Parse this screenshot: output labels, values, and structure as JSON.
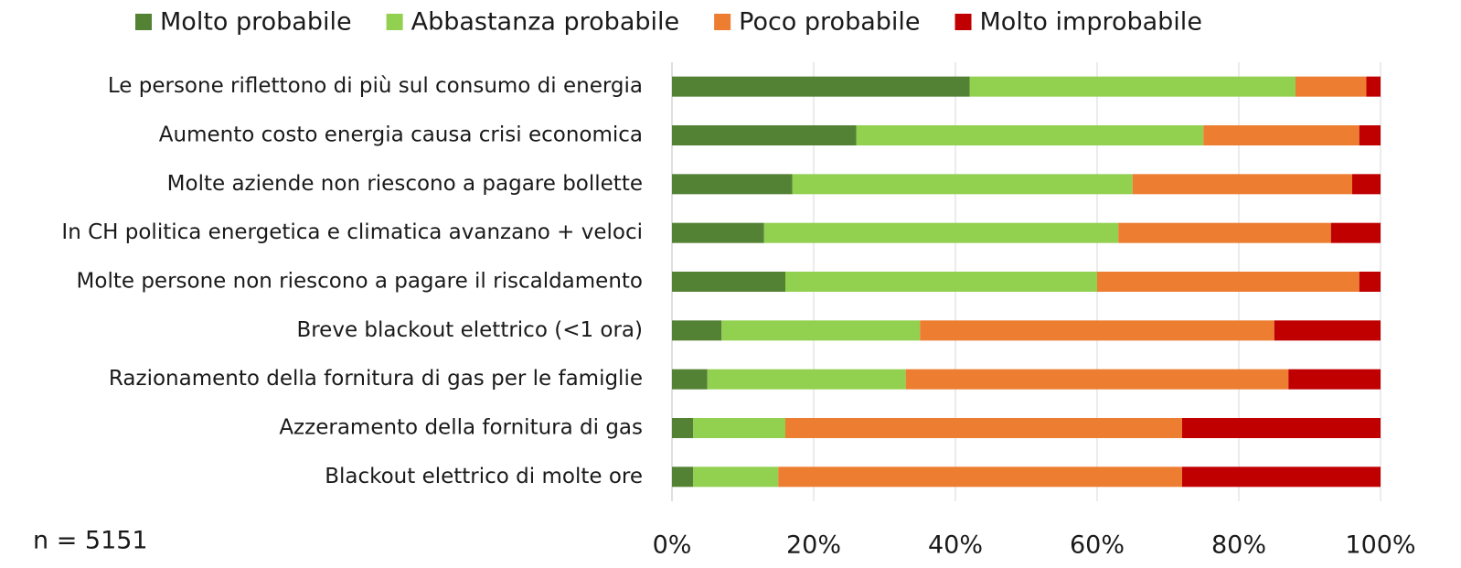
{
  "chart_data": {
    "type": "stacked_bar_horizontal",
    "categories": [
      "Le persone riflettono di più sul consumo di energia",
      "Aumento costo energia causa crisi economica",
      "Molte aziende non riescono a pagare bollette",
      "In CH politica energetica e climatica avanzano + veloci",
      "Molte persone non riescono a pagare il riscaldamento",
      "Breve blackout elettrico (<1 ora)",
      "Razionamento della fornitura di gas per le famiglie",
      "Azzeramento della fornitura di gas",
      "Blackout elettrico di molte ore"
    ],
    "series": [
      {
        "name": "Molto probabile",
        "color": "#548235",
        "values": [
          42,
          26,
          17,
          13,
          16,
          7,
          5,
          3,
          3
        ]
      },
      {
        "name": "Abbastanza probabile",
        "color": "#92d050",
        "values": [
          46,
          49,
          48,
          50,
          44,
          28,
          28,
          13,
          12
        ]
      },
      {
        "name": "Poco probabile",
        "color": "#ed7d31",
        "values": [
          10,
          22,
          31,
          30,
          37,
          50,
          54,
          56,
          57
        ]
      },
      {
        "name": "Molto improbabile",
        "color": "#c00000",
        "values": [
          2,
          3,
          4,
          7,
          3,
          15,
          13,
          28,
          28
        ]
      }
    ],
    "xlim": [
      0,
      100
    ],
    "xticks": [
      {
        "value": 0,
        "label": "0%"
      },
      {
        "value": 20,
        "label": "20%"
      },
      {
        "value": 40,
        "label": "40%"
      },
      {
        "value": 60,
        "label": "60%"
      },
      {
        "value": 80,
        "label": "80%"
      },
      {
        "value": 100,
        "label": "100%"
      }
    ],
    "grid": true,
    "legend": "top",
    "annotation": "n = 5151"
  }
}
